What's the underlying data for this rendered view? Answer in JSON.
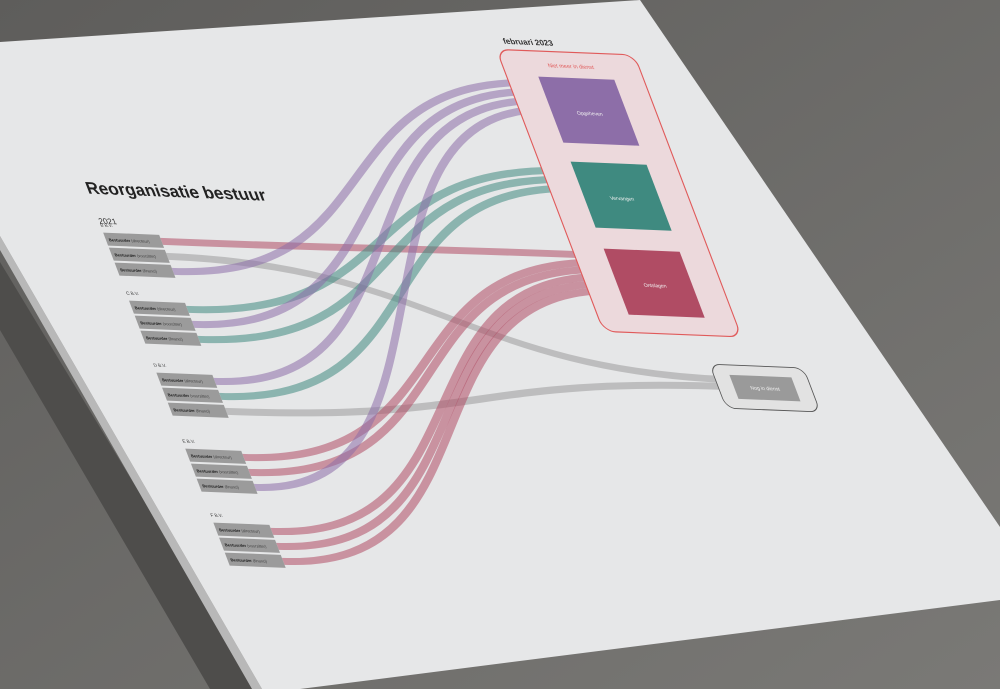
{
  "title": "Reorganisatie bestuur",
  "year_start": "2021",
  "year_end": "februari 2023",
  "groups": {
    "niet_meer": {
      "label": "Niet meer in dienst",
      "nodes": [
        {
          "id": "opgeheven",
          "label": "Opgeheven",
          "color": "#8d6ea8"
        },
        {
          "id": "vervangen",
          "label": "Vervangen",
          "color": "#3f8a80"
        },
        {
          "id": "ontslagen",
          "label": "Ontslagen",
          "color": "#b04c64"
        }
      ]
    },
    "nog": {
      "label": "Nog in dienst",
      "color": "#9a9a9a"
    }
  },
  "companies": [
    {
      "id": "B",
      "label": "B B.V.",
      "roles": [
        {
          "name": "Bestuurder",
          "qualifier": "(directeur)",
          "target": "ontslagen"
        },
        {
          "name": "Bestuurder",
          "qualifier": "(voorzitter)",
          "target": "nog"
        },
        {
          "name": "Bestuurder",
          "qualifier": "(financi)",
          "target": "opgeheven"
        }
      ]
    },
    {
      "id": "C",
      "label": "C B.V.",
      "roles": [
        {
          "name": "Bestuurder",
          "qualifier": "(directeur)",
          "target": "vervangen"
        },
        {
          "name": "Bestuurder",
          "qualifier": "(voorzitter)",
          "target": "opgeheven"
        },
        {
          "name": "Bestuurder",
          "qualifier": "(financi)",
          "target": "vervangen"
        }
      ]
    },
    {
      "id": "D",
      "label": "D B.V.",
      "roles": [
        {
          "name": "Bestuurder",
          "qualifier": "(directeur)",
          "target": "opgeheven"
        },
        {
          "name": "Bestuurder",
          "qualifier": "(voorzitter)",
          "target": "vervangen"
        },
        {
          "name": "Bestuurder",
          "qualifier": "(financi)",
          "target": "nog"
        }
      ]
    },
    {
      "id": "E",
      "label": "E B.V.",
      "roles": [
        {
          "name": "Bestuurder",
          "qualifier": "(directeur)",
          "target": "ontslagen"
        },
        {
          "name": "Bestuurder",
          "qualifier": "(voorzitter)",
          "target": "ontslagen"
        },
        {
          "name": "Bestuurder",
          "qualifier": "(financi)",
          "target": "opgeheven"
        }
      ]
    },
    {
      "id": "F",
      "label": "F B.V.",
      "roles": [
        {
          "name": "Bestuurder",
          "qualifier": "(directeur)",
          "target": "ontslagen"
        },
        {
          "name": "Bestuurder",
          "qualifier": "(voorzitter)",
          "target": "ontslagen"
        },
        {
          "name": "Bestuurder",
          "qualifier": "(financi)",
          "target": "ontslagen"
        }
      ]
    }
  ],
  "colors": {
    "border": "#e05a5a",
    "roleBox": "#9b9b9b",
    "paper": "#e8e8e8",
    "background": "#6d6c6a"
  }
}
